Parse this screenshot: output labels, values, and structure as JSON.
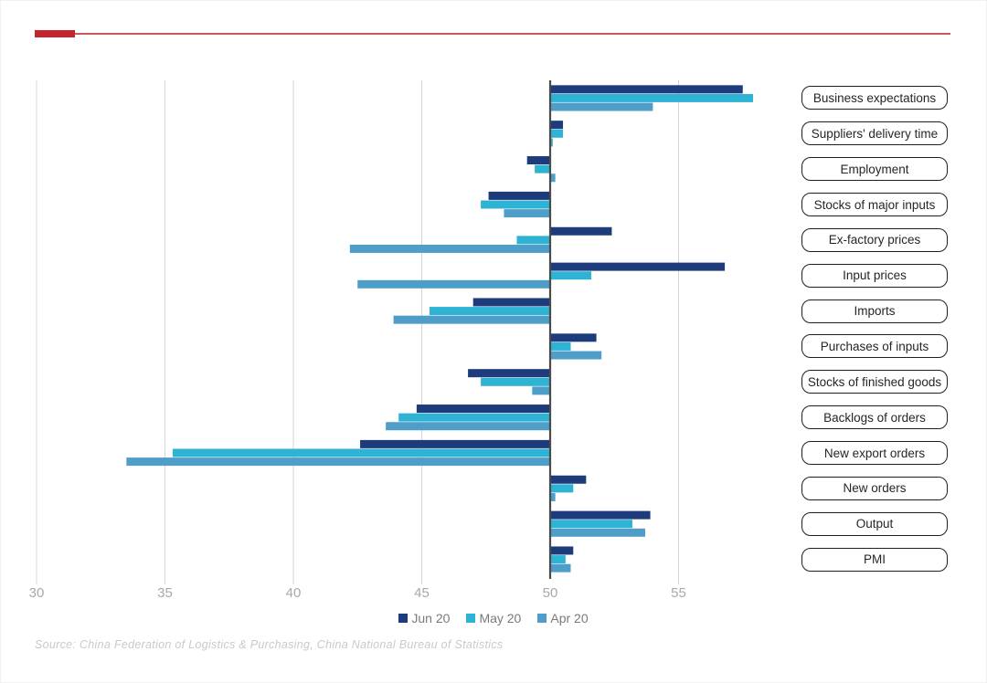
{
  "chart_data": {
    "type": "bar",
    "orientation": "horizontal",
    "baseline": 50,
    "categories": [
      "Business expectations",
      "Suppliers' delivery time",
      "Employment",
      "Stocks of major inputs",
      "Ex-factory prices",
      "Input prices",
      "Imports",
      "Purchases of inputs",
      "Stocks of finished goods",
      "Backlogs of orders",
      "New export orders",
      "New orders",
      "Output",
      "PMI"
    ],
    "series": [
      {
        "name": "Jun 20",
        "color": "#1e3c7c",
        "values": [
          57.5,
          50.5,
          49.1,
          47.6,
          52.4,
          56.8,
          47.0,
          51.8,
          46.8,
          44.8,
          42.6,
          51.4,
          53.9,
          50.9
        ]
      },
      {
        "name": "May 20",
        "color": "#2eb3d5",
        "values": [
          57.9,
          50.5,
          49.4,
          47.3,
          48.7,
          51.6,
          45.3,
          50.8,
          47.3,
          44.1,
          35.3,
          50.9,
          53.2,
          50.6
        ]
      },
      {
        "name": "Apr 20",
        "color": "#4f9ec9",
        "values": [
          54.0,
          50.1,
          50.2,
          48.2,
          42.2,
          42.5,
          43.9,
          52.0,
          49.3,
          43.6,
          33.5,
          50.2,
          53.7,
          50.8
        ]
      }
    ],
    "x_ticks": [
      30,
      35,
      40,
      45,
      50,
      55
    ],
    "xlim": [
      30,
      58.2
    ],
    "grid": "vertical",
    "legend_position": "bottom-center"
  },
  "footer": {
    "source": "Source: China Federation of Logistics & Purchasing, China National Bureau of Statistics"
  },
  "colors": {
    "accent_red": "#c4242b",
    "accent_red_rule": "#cf575c",
    "baseline_line": "#4a4a4a",
    "gridline": "#d6d6d6",
    "tick_label": "#a8a8a8",
    "legend_text": "#7a7a7a",
    "label_box_border": "#1f1f1f",
    "source_text": "#c9c9c9"
  }
}
